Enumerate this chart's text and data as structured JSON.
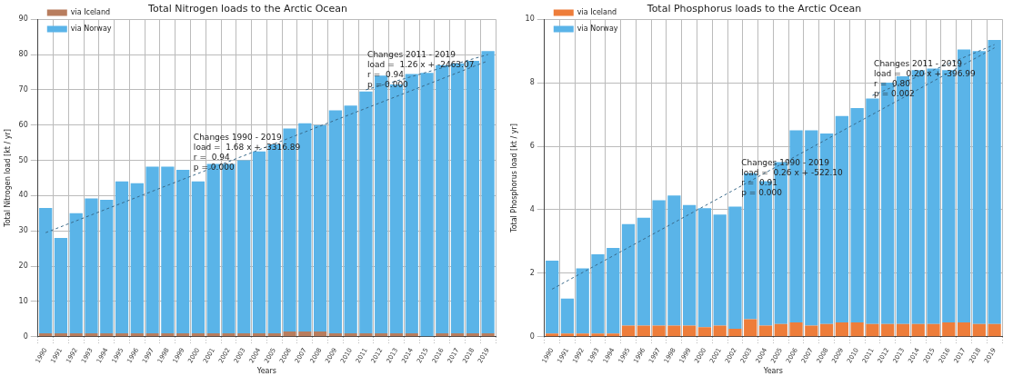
{
  "chart_data": [
    {
      "type": "bar",
      "title": "Total Nitrogen loads to the Arctic Ocean",
      "xlabel": "Years",
      "ylabel": "Total Nitrogen load [kt / yr]",
      "categories": [
        "1990",
        "1991",
        "1992",
        "1993",
        "1994",
        "1995",
        "1996",
        "1997",
        "1998",
        "1999",
        "2000",
        "2001",
        "2002",
        "2003",
        "2004",
        "2005",
        "2006",
        "2007",
        "2008",
        "2009",
        "2010",
        "2011",
        "2012",
        "2013",
        "2014",
        "2015",
        "2016",
        "2017",
        "2018",
        "2019"
      ],
      "stacked": true,
      "grid": true,
      "legend": "top left",
      "ylim": [
        0,
        90
      ],
      "yticks": [
        0,
        10,
        20,
        30,
        40,
        50,
        60,
        70,
        80,
        90
      ],
      "series": [
        {
          "name": "via Iceland",
          "color": "#b87d5e",
          "values": [
            1,
            1,
            1,
            1,
            1,
            1,
            1,
            1,
            1,
            1,
            1,
            1,
            1,
            1,
            1,
            1,
            1.5,
            1.5,
            1.5,
            1,
            1,
            1,
            1,
            1,
            1,
            0,
            1,
            1,
            1,
            1
          ]
        },
        {
          "name": "via Norway",
          "color": "#5ab4e8",
          "values": [
            35.5,
            27,
            34,
            38.2,
            37.8,
            43,
            42.5,
            47.2,
            47.2,
            46.3,
            43,
            48,
            48,
            49,
            51.5,
            53.5,
            57.5,
            59,
            58.5,
            63.2,
            64.5,
            68.5,
            73,
            70.5,
            73.5,
            74.8,
            76,
            76.5,
            77.2,
            80
          ]
        },
        {
          "type": "line",
          "color": "#3a6a8a",
          "line_style": "dashed",
          "marker": "none",
          "values": [
            29.5,
            null,
            null,
            null,
            null,
            null,
            null,
            null,
            null,
            null,
            null,
            null,
            null,
            null,
            null,
            null,
            null,
            null,
            null,
            null,
            null,
            null,
            null,
            null,
            null,
            null,
            null,
            null,
            null,
            78.2
          ]
        },
        {
          "type": "line",
          "color": "#3a6a8a",
          "line_style": "dashed",
          "marker": "none",
          "values": [
            null,
            null,
            null,
            null,
            null,
            null,
            null,
            null,
            null,
            null,
            null,
            null,
            null,
            null,
            null,
            null,
            null,
            null,
            null,
            null,
            null,
            70,
            null,
            null,
            null,
            null,
            null,
            null,
            null,
            80
          ]
        }
      ],
      "annotations": [
        "Changes 1990 - 2019\nload =  1.68 x + -3316.89\nr =  0.94\np = 0.000",
        "Changes 2011 - 2019\nload =  1.26 x + -2463.07\nr =  0.94\np = 0.000"
      ]
    },
    {
      "type": "bar",
      "title": "Total Phosphorus loads to the Arctic Ocean",
      "xlabel": "Years",
      "ylabel": "Total Phosphorus load [kt / yr]",
      "categories": [
        "1990",
        "1991",
        "1992",
        "1993",
        "1994",
        "1995",
        "1996",
        "1997",
        "1998",
        "1999",
        "2000",
        "2001",
        "2002",
        "2003",
        "2004",
        "2005",
        "2006",
        "2007",
        "2008",
        "2009",
        "2010",
        "2011",
        "2012",
        "2013",
        "2014",
        "2015",
        "2016",
        "2017",
        "2018",
        "2019"
      ],
      "stacked": true,
      "grid": true,
      "legend": "top left",
      "ylim": [
        0,
        10
      ],
      "yticks": [
        0,
        2,
        4,
        6,
        8,
        10
      ],
      "series": [
        {
          "name": "via Iceland",
          "color": "#ee7d3a",
          "values": [
            0.1,
            0.1,
            0.1,
            0.1,
            0.1,
            0.35,
            0.35,
            0.35,
            0.35,
            0.35,
            0.3,
            0.35,
            0.25,
            0.55,
            0.35,
            0.4,
            0.45,
            0.35,
            0.4,
            0.45,
            0.45,
            0.4,
            0.4,
            0.4,
            0.4,
            0.4,
            0.45,
            0.45,
            0.4,
            0.4
          ]
        },
        {
          "name": "via Norway",
          "color": "#5ab4e8",
          "values": [
            2.3,
            1.1,
            2.05,
            2.5,
            2.7,
            3.2,
            3.4,
            3.95,
            4.1,
            3.8,
            3.75,
            3.5,
            3.85,
            4.6,
            4.55,
            5.1,
            6.05,
            6.15,
            6,
            6.5,
            6.75,
            7.1,
            7.6,
            7.8,
            8,
            8.05,
            7.95,
            8.6,
            8.6,
            8.95
          ]
        },
        {
          "type": "line",
          "color": "#3a6a8a",
          "line_style": "dashed",
          "marker": "none",
          "values": [
            1.5,
            null,
            null,
            null,
            null,
            null,
            null,
            null,
            null,
            null,
            null,
            null,
            null,
            null,
            null,
            null,
            null,
            null,
            null,
            null,
            null,
            null,
            null,
            null,
            null,
            null,
            null,
            null,
            null,
            9.1
          ]
        },
        {
          "type": "line",
          "color": "#3a6a8a",
          "line_style": "dashed",
          "marker": "none",
          "values": [
            null,
            null,
            null,
            null,
            null,
            null,
            null,
            null,
            null,
            null,
            null,
            null,
            null,
            null,
            null,
            null,
            null,
            null,
            null,
            null,
            null,
            7.6,
            null,
            null,
            null,
            null,
            null,
            null,
            null,
            9.2
          ]
        }
      ],
      "annotations": [
        "Changes 1990 - 2019\nload =  0.26 x + -522.10\nr =  0.91\np = 0.000",
        "Changes 2011 - 2019\nload =  0.20 x + -396.99\nr =  0.80\np = 0.002"
      ]
    }
  ]
}
